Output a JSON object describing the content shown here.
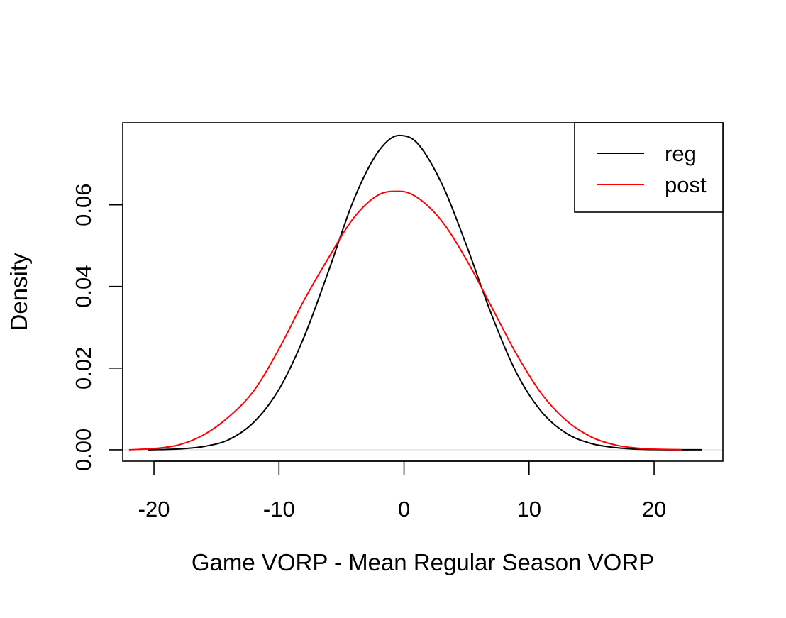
{
  "chart_data": {
    "type": "line",
    "title": "",
    "xlabel": "Game VORP - Mean Regular Season VORP",
    "ylabel": "Density",
    "xlim": [
      -22.5,
      25.5
    ],
    "ylim": [
      -0.0028,
      0.0801
    ],
    "x_ticks": [
      -20,
      -10,
      0,
      10,
      20
    ],
    "x_tick_labels": [
      "-20",
      "-10",
      "0",
      "10",
      "20"
    ],
    "y_ticks": [
      0.0,
      0.02,
      0.04,
      0.06
    ],
    "y_tick_labels": [
      "0.00",
      "0.02",
      "0.04",
      "0.06"
    ],
    "grid": false,
    "legend_position": "top-right",
    "series": [
      {
        "name": "reg",
        "color": "#000000",
        "x": [
          -20.5,
          -18,
          -16,
          -14,
          -12,
          -10,
          -8,
          -6,
          -4,
          -2,
          -0.4,
          1,
          3,
          5,
          7,
          9,
          11,
          13,
          15,
          17,
          19,
          21,
          23.8
        ],
        "y": [
          0.0,
          0.0002,
          0.0008,
          0.0025,
          0.0068,
          0.0148,
          0.0276,
          0.0441,
          0.0614,
          0.0733,
          0.077,
          0.0753,
          0.0653,
          0.05,
          0.0331,
          0.0188,
          0.0093,
          0.004,
          0.0015,
          0.0005,
          0.0001,
          0.0,
          0.0
        ]
      },
      {
        "name": "post",
        "color": "#ff0000",
        "x": [
          -22.0,
          -20,
          -18,
          -16,
          -14,
          -12,
          -10,
          -8,
          -6,
          -4,
          -2,
          -0.3,
          1,
          3,
          5,
          7,
          9,
          11,
          13,
          15,
          17,
          19,
          22.2
        ],
        "y": [
          0.0,
          0.0003,
          0.0012,
          0.0037,
          0.0081,
          0.0145,
          0.0247,
          0.0366,
          0.0472,
          0.0569,
          0.0625,
          0.0633,
          0.0619,
          0.0561,
          0.0465,
          0.035,
          0.0234,
          0.0137,
          0.0071,
          0.0031,
          0.0011,
          0.0003,
          0.0
        ]
      }
    ]
  }
}
